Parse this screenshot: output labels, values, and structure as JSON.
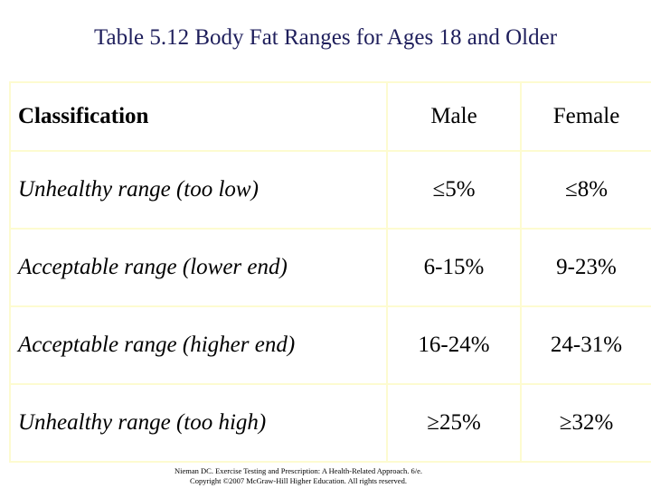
{
  "title": "Table 5.12 Body Fat Ranges for Ages 18 and Older",
  "table": {
    "headers": [
      "Classification",
      "Male",
      "Female"
    ],
    "rows": [
      [
        "Unhealthy range (too low)",
        "≤5%",
        "≤8%"
      ],
      [
        "Acceptable range (lower end)",
        "6-15%",
        "9-23%"
      ],
      [
        "Acceptable range (higher end)",
        "16-24%",
        "24-31%"
      ],
      [
        "Unhealthy range (too high)",
        "≥25%",
        "≥32%"
      ]
    ]
  },
  "citation": {
    "line1": "Nieman DC. Exercise Testing and Prescription: A Health-Related Approach. 6/e.",
    "line2": "Copyright ©2007 McGraw-Hill Higher Education. All rights reserved."
  },
  "colors": {
    "title_text": "#1f1f5c",
    "border": "#fdfbd0",
    "text": "#000000"
  }
}
